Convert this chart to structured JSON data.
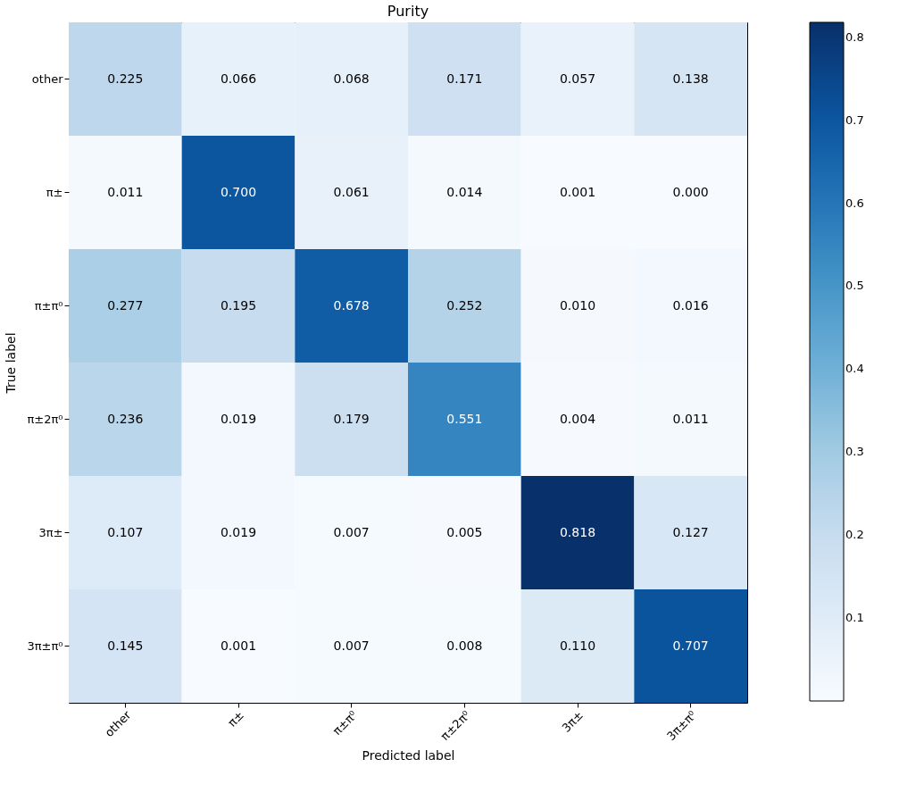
{
  "chart_data": {
    "type": "heatmap",
    "title": "Purity",
    "xlabel": "Predicted label",
    "ylabel": "True label",
    "categories": [
      "other",
      "π±",
      "π±π⁰",
      "π±2π⁰",
      "3π±",
      "3π±π⁰"
    ],
    "y_categories": [
      "other",
      "π±",
      "π±π⁰",
      "π±2π⁰",
      "3π±",
      "3π±π⁰"
    ],
    "cells": [
      [
        0.225,
        0.066,
        0.068,
        0.171,
        0.057,
        0.138
      ],
      [
        0.011,
        0.7,
        0.061,
        0.014,
        0.001,
        0.0
      ],
      [
        0.277,
        0.195,
        0.678,
        0.252,
        0.01,
        0.016
      ],
      [
        0.236,
        0.019,
        0.179,
        0.551,
        0.004,
        0.011
      ],
      [
        0.107,
        0.019,
        0.007,
        0.005,
        0.818,
        0.127
      ],
      [
        0.145,
        0.001,
        0.007,
        0.008,
        0.11,
        0.707
      ]
    ],
    "cell_labels": [
      [
        "0.225",
        "0.066",
        "0.068",
        "0.171",
        "0.057",
        "0.138"
      ],
      [
        "0.011",
        "0.700",
        "0.061",
        "0.014",
        "0.001",
        "0.000"
      ],
      [
        "0.277",
        "0.195",
        "0.678",
        "0.252",
        "0.010",
        "0.016"
      ],
      [
        "0.236",
        "0.019",
        "0.179",
        "0.551",
        "0.004",
        "0.011"
      ],
      [
        "0.107",
        "0.019",
        "0.007",
        "0.005",
        "0.818",
        "0.127"
      ],
      [
        "0.145",
        "0.001",
        "0.007",
        "0.008",
        "0.110",
        "0.707"
      ]
    ],
    "clim": [
      0,
      0.818
    ],
    "cticks": [
      0.1,
      0.2,
      0.3,
      0.4,
      0.5,
      0.6,
      0.7,
      0.8
    ]
  }
}
